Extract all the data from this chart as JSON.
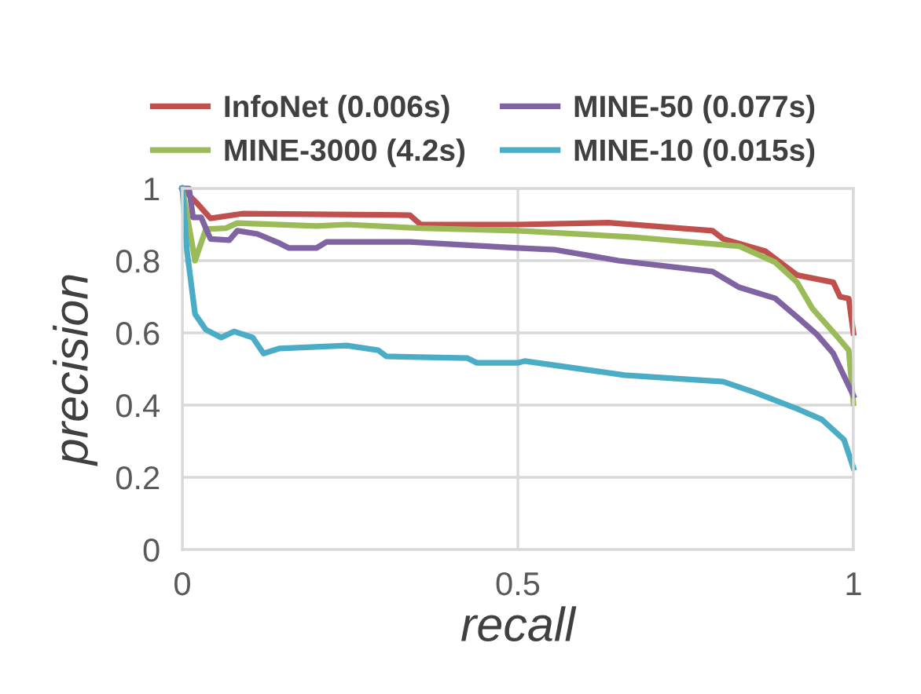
{
  "chart_data": {
    "type": "line",
    "xlabel": "recall",
    "ylabel": "precision",
    "xlim": [
      0,
      1
    ],
    "ylim": [
      0,
      1
    ],
    "xticks": [
      0,
      0.5,
      1
    ],
    "yticks": [
      0,
      0.2,
      0.4,
      0.6,
      0.8,
      1
    ],
    "grid": true,
    "legend": "top",
    "marker": "none",
    "line_style": "solid",
    "series": [
      {
        "name": "InfoNet (0.006s)",
        "color": "#c0504d",
        "x": [
          0,
          0.023,
          0.042,
          0.089,
          0.339,
          0.355,
          0.5,
          0.635,
          0.79,
          0.806,
          0.869,
          0.916,
          0.97,
          0.98,
          0.993,
          1
        ],
        "values": [
          1,
          0.957,
          0.917,
          0.93,
          0.926,
          0.9,
          0.9,
          0.905,
          0.883,
          0.86,
          0.826,
          0.76,
          0.74,
          0.7,
          0.695,
          0.6
        ]
      },
      {
        "name": "MINE-3000 (4.2s)",
        "color": "#9bbb59",
        "x": [
          0,
          0.019,
          0.035,
          0.065,
          0.082,
          0.2,
          0.245,
          0.355,
          0.5,
          0.673,
          0.83,
          0.883,
          0.916,
          0.939,
          0.977,
          0.993,
          1
        ],
        "values": [
          1,
          0.8,
          0.887,
          0.89,
          0.904,
          0.896,
          0.9,
          0.89,
          0.883,
          0.865,
          0.84,
          0.796,
          0.74,
          0.667,
          0.587,
          0.552,
          0.405
        ]
      },
      {
        "name": "MINE-50 (0.077s)",
        "color": "#8064a2",
        "x": [
          0,
          0.01,
          0.016,
          0.028,
          0.042,
          0.07,
          0.082,
          0.112,
          0.145,
          0.159,
          0.2,
          0.215,
          0.339,
          0.5,
          0.556,
          0.65,
          0.79,
          0.83,
          0.883,
          0.916,
          0.946,
          0.97,
          1
        ],
        "values": [
          1,
          1,
          0.92,
          0.92,
          0.86,
          0.857,
          0.883,
          0.874,
          0.848,
          0.835,
          0.835,
          0.852,
          0.852,
          0.835,
          0.83,
          0.8,
          0.77,
          0.726,
          0.696,
          0.644,
          0.595,
          0.543,
          0.426
        ]
      },
      {
        "name": "MINE-10 (0.015s)",
        "color": "#4bacc6",
        "x": [
          0,
          0.007,
          0.019,
          0.035,
          0.058,
          0.077,
          0.105,
          0.121,
          0.145,
          0.245,
          0.292,
          0.304,
          0.425,
          0.439,
          0.5,
          0.51,
          0.659,
          0.806,
          0.853,
          0.916,
          0.953,
          0.986,
          1
        ],
        "values": [
          1,
          0.826,
          0.652,
          0.609,
          0.587,
          0.604,
          0.587,
          0.543,
          0.557,
          0.565,
          0.552,
          0.535,
          0.53,
          0.517,
          0.517,
          0.522,
          0.483,
          0.465,
          0.435,
          0.39,
          0.36,
          0.304,
          0.226
        ]
      }
    ]
  }
}
